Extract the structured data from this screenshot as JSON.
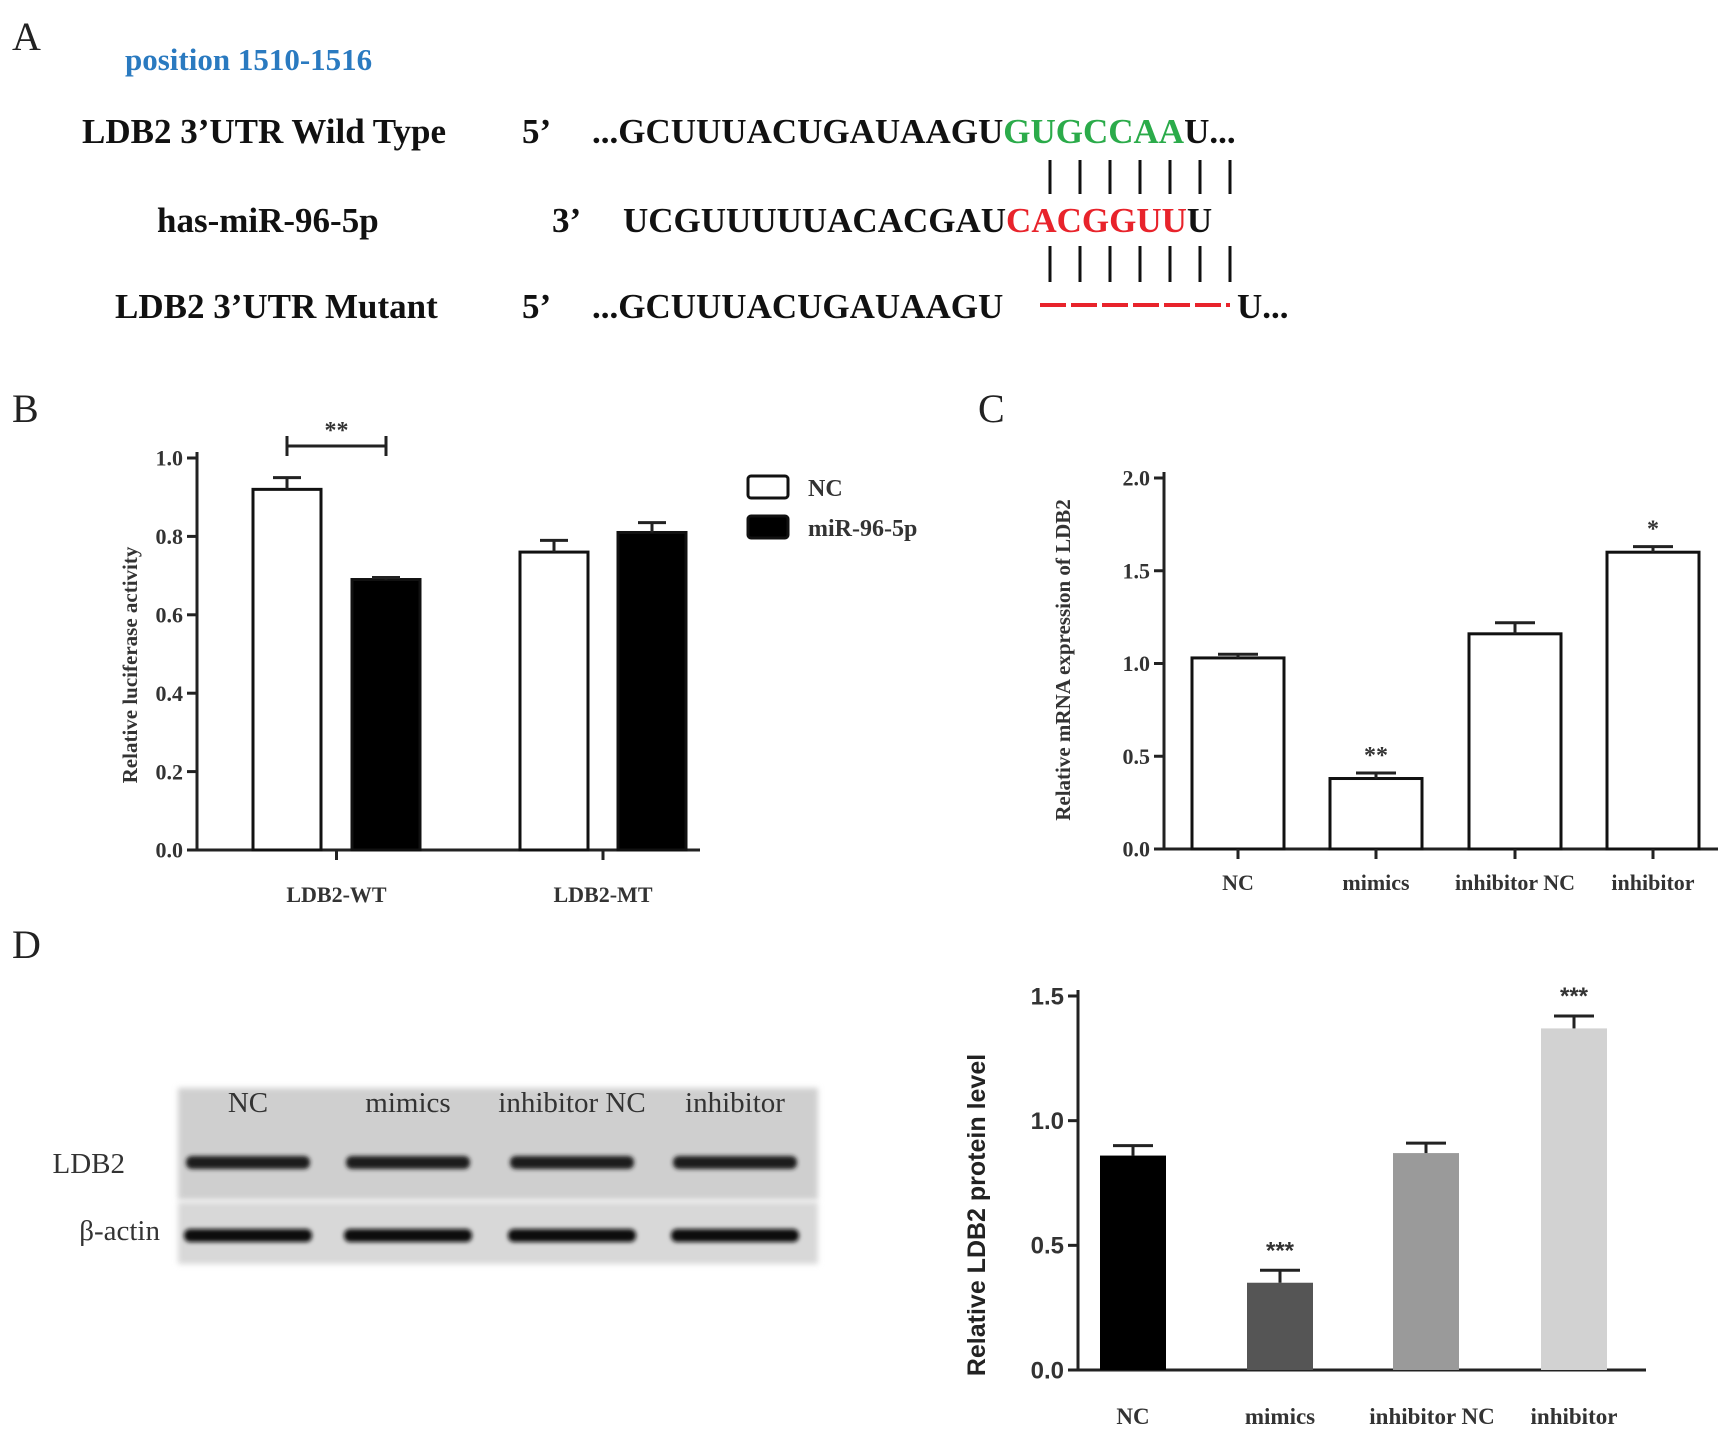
{
  "panel_labels": {
    "a": "A",
    "b": "B",
    "c": "C",
    "d": "D"
  },
  "panel_a": {
    "position_label": "position 1510-1516",
    "position_color": "#2a7ac0",
    "rows": [
      {
        "name": "LDB2 3’UTR Wild Type",
        "end": "5’",
        "prefix": "...GCUUUACUGAUAAGU",
        "site": "GUGCCAA",
        "suffix": "U...",
        "site_color": "#2bab4a"
      },
      {
        "name": "has-miR-96-5p",
        "end": "3’",
        "prefix": "UCGUUUUUACACGAU",
        "site": "CACGGUU",
        "suffix": "U",
        "site_color": "#e8232b"
      },
      {
        "name": "LDB2 3’UTR Mutant",
        "end": "5’",
        "prefix": "...GCUUUACUGAUAAGU",
        "site": "",
        "suffix": "U...",
        "site_color": "#e8232b"
      }
    ]
  },
  "chart_data": [
    {
      "panel": "B",
      "type": "bar",
      "ylabel": "Relative luciferase activity",
      "categories": [
        "LDB2-WT",
        "LDB2-MT"
      ],
      "series": [
        {
          "name": "NC",
          "values": [
            0.92,
            0.76
          ],
          "errors": [
            0.03,
            0.03
          ],
          "color": "#ffffff"
        },
        {
          "name": "miR-96-5p",
          "values": [
            0.69,
            0.81
          ],
          "errors": [
            0.005,
            0.025
          ],
          "color": "#000000"
        }
      ],
      "yticks": [
        "0.0",
        "0.2",
        "0.4",
        "0.6",
        "0.8",
        "1.0"
      ],
      "ylim": [
        0,
        1.0
      ],
      "annotations": [
        {
          "text": "**",
          "between": [
            "NC",
            "miR-96-5p"
          ],
          "category": "LDB2-WT"
        }
      ],
      "legend": "top-right"
    },
    {
      "panel": "C",
      "type": "bar",
      "ylabel": "Relative mRNA expression of LDB2",
      "categories": [
        "NC",
        "mimics",
        "inhibitor NC",
        "inhibitor"
      ],
      "values": [
        1.03,
        0.38,
        1.16,
        1.6
      ],
      "errors": [
        0.02,
        0.03,
        0.06,
        0.03
      ],
      "significance": [
        "",
        "**",
        "",
        "*"
      ],
      "yticks": [
        "0.0",
        "0.5",
        "1.0",
        "1.5",
        "2.0"
      ],
      "ylim": [
        0,
        2.0
      ]
    },
    {
      "panel": "D",
      "type": "bar",
      "ylabel": "Relative LDB2 protein level",
      "categories": [
        "NC",
        "mimics",
        "inhibitor NC",
        "inhibitor"
      ],
      "values": [
        0.86,
        0.35,
        0.87,
        1.37
      ],
      "errors": [
        0.04,
        0.05,
        0.04,
        0.05
      ],
      "significance": [
        "",
        "***",
        "",
        "***"
      ],
      "colors": [
        "#000000",
        "#555555",
        "#9a9a9a",
        "#d2d2d2"
      ],
      "yticks": [
        "0.0",
        "0.5",
        "1.0",
        "1.5"
      ],
      "ylim": [
        0,
        1.5
      ]
    }
  ],
  "blot": {
    "lanes": [
      "NC",
      "mimics",
      "inhibitor NC",
      "inhibitor"
    ],
    "rows": [
      "LDB2",
      "β-actin"
    ]
  }
}
